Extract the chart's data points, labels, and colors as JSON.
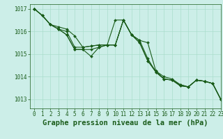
{
  "title": "Graphe pression niveau de la mer (hPa)",
  "xlim": [
    -0.5,
    23
  ],
  "ylim": [
    1012.6,
    1017.2
  ],
  "yticks": [
    1013,
    1014,
    1015,
    1016,
    1017
  ],
  "xticks": [
    0,
    1,
    2,
    3,
    4,
    5,
    6,
    7,
    8,
    9,
    10,
    11,
    12,
    13,
    14,
    15,
    16,
    17,
    18,
    19,
    20,
    21,
    22,
    23
  ],
  "bg_color": "#cceee8",
  "grid_color": "#aaddcc",
  "line_color": "#1a5c1a",
  "series": [
    [
      1017.0,
      1016.7,
      1016.3,
      1016.1,
      1015.85,
      1015.2,
      1015.2,
      1014.9,
      1015.3,
      1015.4,
      1015.4,
      1016.5,
      1015.85,
      1015.6,
      1014.8,
      1014.2,
      1013.9,
      1013.85,
      1013.6,
      1013.55,
      1013.85,
      1013.8,
      1013.7,
      1013.0
    ],
    [
      1017.0,
      1016.7,
      1016.3,
      1016.1,
      1015.85,
      1015.2,
      1015.2,
      1015.2,
      1015.3,
      1015.4,
      1015.4,
      1016.5,
      1015.85,
      1015.6,
      1015.5,
      1014.25,
      1013.9,
      1013.85,
      1013.65,
      1013.55,
      1013.85,
      1013.8,
      1013.7,
      1013.0
    ],
    [
      1017.0,
      1016.7,
      1016.3,
      1016.1,
      1016.0,
      1015.3,
      1015.3,
      1015.35,
      1015.4,
      1015.4,
      1016.5,
      1016.5,
      1015.85,
      1015.5,
      1014.7,
      1014.2,
      1013.9,
      1013.85,
      1013.6,
      1013.55,
      1013.85,
      1013.8,
      1013.7,
      1013.0
    ],
    [
      1017.0,
      1016.7,
      1016.3,
      1016.2,
      1016.1,
      1015.8,
      1015.3,
      1015.35,
      1015.4,
      1015.4,
      1015.4,
      1016.5,
      1015.85,
      1015.5,
      1014.7,
      1014.25,
      1014.0,
      1013.9,
      1013.65,
      1013.55,
      1013.85,
      1013.8,
      1013.7,
      1013.0
    ]
  ],
  "font_color": "#1a5c1a",
  "font_size_title": 7.5,
  "font_size_ticks": 5.5,
  "marker_size": 2.0,
  "line_width": 0.8
}
